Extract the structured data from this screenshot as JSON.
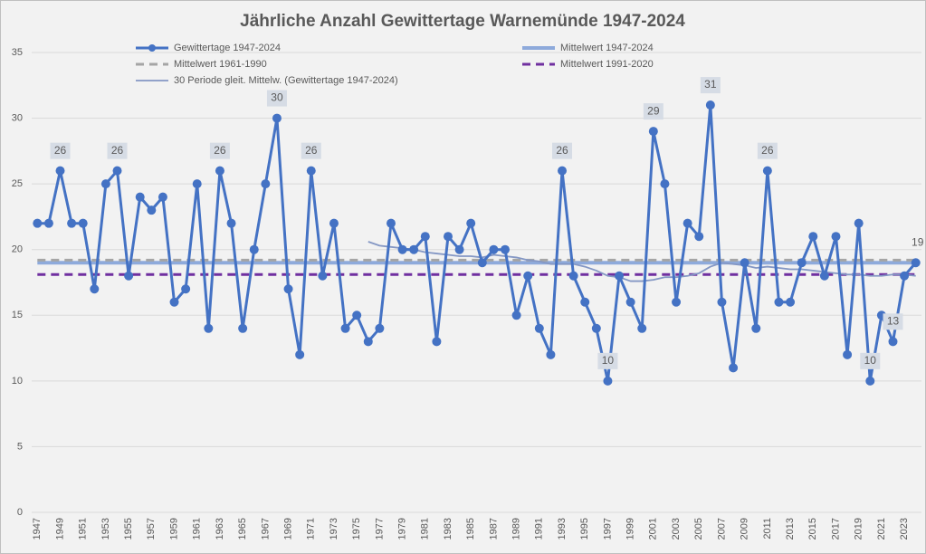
{
  "chart_data": {
    "type": "line",
    "title": "Jährliche Anzahl Gewittertage Warnemünde 1947-2024",
    "categories": [
      "1947",
      null,
      "1949",
      null,
      "1951",
      null,
      "1953",
      null,
      "1955",
      null,
      "1957",
      null,
      "1959",
      null,
      "1961",
      null,
      "1963",
      null,
      "1965",
      null,
      "1967",
      null,
      "1969",
      null,
      "1971",
      null,
      "1973",
      null,
      "1975",
      null,
      "1977",
      null,
      "1979",
      null,
      "1981",
      null,
      "1983",
      null,
      "1985",
      null,
      "1987",
      null,
      "1989",
      null,
      "1991",
      null,
      "1993",
      null,
      "1995",
      null,
      "1997",
      null,
      "1999",
      null,
      "2001",
      null,
      "2003",
      null,
      "2005",
      null,
      "2007",
      null,
      "2009",
      null,
      "2011",
      null,
      "2013",
      null,
      "2015",
      null,
      "2017",
      null,
      "2019",
      null,
      "2021",
      null,
      "2023",
      null
    ],
    "series": [
      {
        "name": "Gewittertage 1947-2024",
        "color": "#4472c4",
        "markers": true,
        "values": [
          22,
          22,
          26,
          22,
          22,
          17,
          25,
          26,
          18,
          24,
          23,
          24,
          16,
          17,
          25,
          14,
          26,
          22,
          14,
          20,
          25,
          30,
          17,
          12,
          26,
          18,
          22,
          14,
          15,
          13,
          14,
          22,
          20,
          20,
          21,
          13,
          21,
          20,
          22,
          19,
          20,
          20,
          15,
          18,
          14,
          12,
          26,
          18,
          16,
          14,
          10,
          18,
          16,
          14,
          29,
          25,
          16,
          22,
          21,
          31,
          16,
          11,
          19,
          14,
          26,
          16,
          16,
          19,
          21,
          18,
          21,
          12,
          22,
          10,
          15,
          13,
          18,
          19
        ],
        "data_label_indices": [
          2,
          7,
          16,
          21,
          24,
          46,
          50,
          54,
          59,
          64,
          73,
          75,
          77
        ]
      },
      {
        "name": "30 Periode gleit. Mittelw. (Gewittertage 1947-2024)",
        "color": "#8497c4",
        "markers": false,
        "values": [
          null,
          null,
          null,
          null,
          null,
          null,
          null,
          null,
          null,
          null,
          null,
          null,
          null,
          null,
          null,
          null,
          null,
          null,
          null,
          null,
          null,
          null,
          null,
          null,
          null,
          null,
          null,
          null,
          null,
          20.6,
          20.3,
          20.2,
          20.1,
          20.0,
          19.8,
          19.7,
          19.6,
          19.5,
          19.5,
          19.4,
          19.6,
          19.5,
          19.4,
          19.2,
          19.1,
          18.9,
          18.9,
          18.9,
          18.7,
          18.4,
          18.0,
          17.9,
          17.6,
          17.6,
          17.7,
          17.9,
          17.9,
          18.0,
          18.2,
          18.7,
          19.0,
          18.9,
          18.8,
          18.6,
          18.7,
          18.6,
          18.5,
          18.5,
          18.4,
          18.3,
          18.2,
          18.1,
          18.1,
          18.0,
          18.0,
          18.1,
          18.1,
          18.0
        ]
      }
    ],
    "reference_lines": [
      {
        "name": "Mittelwert 1947-2024",
        "value": 19.0,
        "color": "#8eaadb",
        "dashed": false
      },
      {
        "name": "Mittelwert 1961-1990",
        "value": 19.2,
        "color": "#a5a5a5",
        "dashed": true
      },
      {
        "name": "Mittelwert 1991-2020",
        "value": 18.1,
        "color": "#7030a0",
        "dashed": true
      }
    ],
    "ylim": [
      0,
      35
    ],
    "yticks": [
      0,
      5,
      10,
      15,
      20,
      25,
      30,
      35
    ],
    "grid": true,
    "legend": "top"
  }
}
